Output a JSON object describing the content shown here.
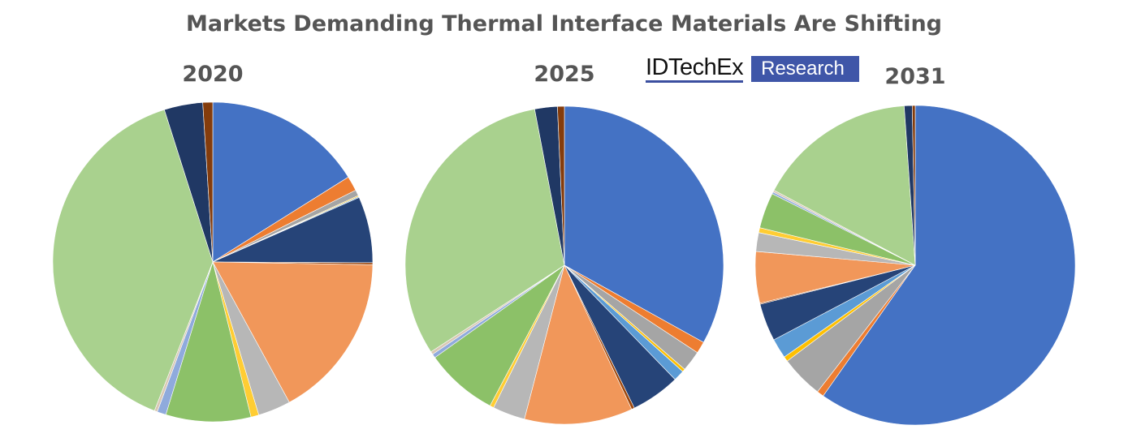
{
  "chart_data": [
    {
      "type": "pie",
      "title": "2020",
      "colors": [
        "#4472C4",
        "#ED7D31",
        "#A5A5A5",
        "#FFC000",
        "#5B9BD5",
        "#264478",
        "#9E480E",
        "#F1975A",
        "#B7B7B7",
        "#FFCD33",
        "#8CC168",
        "#8FAADC",
        "#D9C8B4",
        "#A9D18E",
        "#203864",
        "#843C0C"
      ],
      "values": [
        16.1,
        1.5,
        0.6,
        0.1,
        0.1,
        6.7,
        0.2,
        16.8,
        3.3,
        0.8,
        8.6,
        0.9,
        0.3,
        39.2,
        3.9,
        1.0
      ]
    },
    {
      "type": "pie",
      "title": "2025",
      "colors": [
        "#4472C4",
        "#ED7D31",
        "#A5A5A5",
        "#FFC000",
        "#5B9BD5",
        "#264478",
        "#9E480E",
        "#F1975A",
        "#B7B7B7",
        "#FFCD33",
        "#8CC168",
        "#8FAADC",
        "#D9C8B4",
        "#A9D18E",
        "#203864",
        "#843C0C"
      ],
      "values": [
        33.1,
        1.2,
        2.1,
        0.3,
        1.1,
        5.0,
        0.3,
        11.0,
        3.3,
        0.4,
        7.4,
        0.4,
        0.3,
        31.2,
        2.3,
        0.7
      ]
    },
    {
      "type": "pie",
      "title": "2031",
      "colors": [
        "#4472C4",
        "#ED7D31",
        "#A5A5A5",
        "#FFC000",
        "#5B9BD5",
        "#264478",
        "#9E480E",
        "#F1975A",
        "#B7B7B7",
        "#FFCD33",
        "#8CC168",
        "#8FAADC",
        "#D9C8B4",
        "#A9D18E",
        "#203864",
        "#843C0C"
      ],
      "values": [
        59.7,
        0.7,
        4.3,
        0.5,
        2.0,
        3.8,
        0.1,
        5.2,
        1.9,
        0.5,
        3.6,
        0.2,
        0.2,
        16.1,
        0.8,
        0.3
      ]
    }
  ],
  "header": {
    "title": "Markets Demanding Thermal Interface Materials Are Shifting"
  },
  "logo": {
    "brand": "IDTechEx",
    "tag": "Research"
  }
}
